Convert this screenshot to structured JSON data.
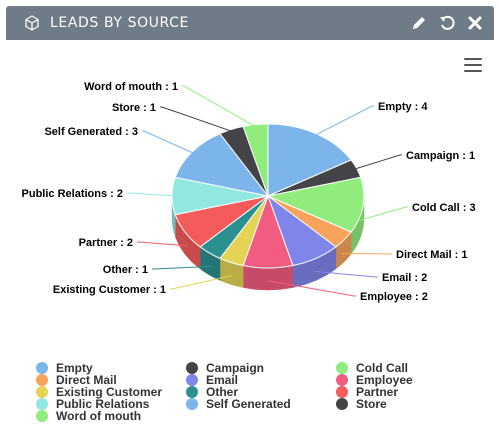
{
  "header": {
    "title": "LEADS BY SOURCE",
    "icons": [
      "cube-icon",
      "pencil-icon",
      "refresh-icon",
      "close-icon"
    ]
  },
  "menu_icon": "hamburger-menu-icon",
  "chart_data": {
    "type": "pie",
    "title": "",
    "slices": [
      {
        "label": "Empty",
        "value": 4,
        "color": "#7cb5ec"
      },
      {
        "label": "Campaign",
        "value": 1,
        "color": "#434348"
      },
      {
        "label": "Cold Call",
        "value": 3,
        "color": "#90ed7d"
      },
      {
        "label": "Direct Mail",
        "value": 1,
        "color": "#f7a35c"
      },
      {
        "label": "Email",
        "value": 2,
        "color": "#8085e9"
      },
      {
        "label": "Employee",
        "value": 2,
        "color": "#f15c80"
      },
      {
        "label": "Existing Customer",
        "value": 1,
        "color": "#e4d354"
      },
      {
        "label": "Other",
        "value": 1,
        "color": "#2b908f"
      },
      {
        "label": "Partner",
        "value": 2,
        "color": "#f45b5b"
      },
      {
        "label": "Public Relations",
        "value": 2,
        "color": "#91e8e1"
      },
      {
        "label": "Self Generated",
        "value": 3,
        "color": "#7cb5ec"
      },
      {
        "label": "Store",
        "value": 1,
        "color": "#434348"
      },
      {
        "label": "Word of mouth",
        "value": 1,
        "color": "#90ed7d"
      }
    ],
    "data_labels": [
      "Empty : 4",
      "Campaign : 1",
      "Cold Call : 3",
      "Direct Mail : 1",
      "Email : 2",
      "Employee : 2",
      "Existing Customer : 1",
      "Other : 1",
      "Partner : 2",
      "Public Relations : 2",
      "Self Generated : 3",
      "Store : 1",
      "Word of mouth : 1"
    ],
    "legend_position": "bottom"
  }
}
